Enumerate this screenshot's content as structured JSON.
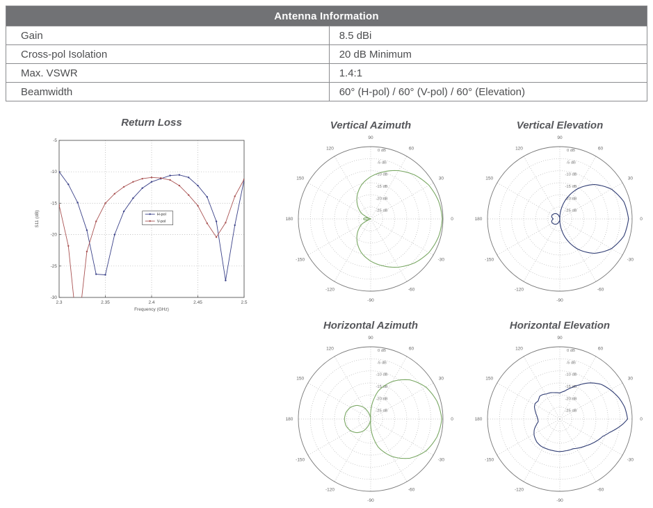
{
  "table": {
    "title": "Antenna Information",
    "rows": [
      {
        "label": "Gain",
        "value": "8.5 dBi"
      },
      {
        "label": "Cross-pol Isolation",
        "value": "20 dB Minimum"
      },
      {
        "label": "Max. VSWR",
        "value": "1.4:1"
      },
      {
        "label": "Beamwidth",
        "value": "60° (H-pol) / 60° (V-pol) / 60° (Elevation)"
      }
    ]
  },
  "colors": {
    "header_bg": "#717275",
    "table_border": "#8a8b8e",
    "body_text": "#4c4d4f",
    "chart_title": "#56575b",
    "h_pol_line": "#3a4188",
    "v_pol_line": "#a95252",
    "green_pattern": "#79a763",
    "navy_pattern": "#2e3b72"
  },
  "chart_data": [
    {
      "type": "line",
      "title": "Return Loss",
      "xlabel": "Frequency (GHz)",
      "ylabel": "S11 (dB)",
      "xlim": [
        2.3,
        2.5
      ],
      "ylim": [
        -30,
        -5
      ],
      "xticks": [
        2.3,
        2.35,
        2.4,
        2.45,
        2.5
      ],
      "yticks": [
        -5,
        -10,
        -15,
        -20,
        -25,
        -30
      ],
      "grid": "dotted",
      "legend_position": "center",
      "x": [
        2.3,
        2.31,
        2.32,
        2.33,
        2.34,
        2.35,
        2.36,
        2.37,
        2.38,
        2.39,
        2.4,
        2.41,
        2.42,
        2.43,
        2.44,
        2.45,
        2.46,
        2.47,
        2.48,
        2.49,
        2.5
      ],
      "series": [
        {
          "name": "H-pol",
          "color": "#3a4188",
          "values": [
            -10.0,
            -12.0,
            -14.9,
            -19.3,
            -26.3,
            -26.4,
            -20.0,
            -16.3,
            -14.2,
            -12.6,
            -11.6,
            -11.1,
            -10.6,
            -10.5,
            -10.9,
            -12.2,
            -14.0,
            -17.9,
            -27.3,
            -18.5,
            -11.3
          ]
        },
        {
          "name": "V-pol",
          "color": "#a95252",
          "values": [
            -15.3,
            -21.8,
            -36.0,
            -22.7,
            -17.9,
            -15.0,
            -13.5,
            -12.4,
            -11.6,
            -11.1,
            -10.9,
            -11.0,
            -11.3,
            -12.2,
            -13.7,
            -15.4,
            -18.2,
            -20.4,
            -18.1,
            -13.9,
            -11.2
          ]
        }
      ]
    },
    {
      "type": "polar",
      "title": "Vertical Azimuth",
      "color": "#79a763",
      "rings_db": [
        0,
        -5,
        -10,
        -15,
        -20,
        -25
      ],
      "r_min_db": -30,
      "angle_labels": [
        90,
        60,
        30,
        0,
        -30,
        -60,
        -90,
        -120,
        -150,
        180,
        150,
        120
      ],
      "points": [
        [
          0,
          -0.3
        ],
        [
          15,
          -0.9
        ],
        [
          30,
          -2.1
        ],
        [
          45,
          -4.2
        ],
        [
          60,
          -6.9
        ],
        [
          75,
          -9.8
        ],
        [
          90,
          -12.5
        ],
        [
          105,
          -15.4
        ],
        [
          120,
          -18.8
        ],
        [
          135,
          -22.4
        ],
        [
          150,
          -26.0
        ],
        [
          158,
          -30
        ],
        [
          165,
          -28.6
        ],
        [
          172,
          -27.4
        ],
        [
          180,
          -27.0
        ],
        [
          188,
          -27.4
        ],
        [
          195,
          -28.6
        ],
        [
          202,
          -30
        ],
        [
          210,
          -26.0
        ],
        [
          225,
          -22.4
        ],
        [
          240,
          -18.8
        ],
        [
          255,
          -15.4
        ],
        [
          270,
          -12.5
        ],
        [
          285,
          -9.8
        ],
        [
          300,
          -6.9
        ],
        [
          315,
          -4.2
        ],
        [
          330,
          -2.1
        ],
        [
          345,
          -0.9
        ],
        [
          360,
          -0.3
        ]
      ]
    },
    {
      "type": "polar",
      "title": "Vertical Elevation",
      "color": "#2e3b72",
      "rings_db": [
        0,
        -5,
        -10,
        -15,
        -20,
        -25
      ],
      "r_min_db": -30,
      "angle_labels": [
        90,
        60,
        30,
        0,
        -30,
        -60,
        -90,
        -120,
        -150,
        180,
        150,
        120
      ],
      "points": [
        [
          0,
          -1.5
        ],
        [
          15,
          -2.5
        ],
        [
          30,
          -5.3
        ],
        [
          45,
          -9.8
        ],
        [
          60,
          -15.7
        ],
        [
          75,
          -22.6
        ],
        [
          85,
          -27.3
        ],
        [
          93,
          -30
        ],
        [
          100,
          -29.3
        ],
        [
          110,
          -28.3
        ],
        [
          120,
          -27.6
        ],
        [
          135,
          -26.9
        ],
        [
          150,
          -26.5
        ],
        [
          162,
          -26.4
        ],
        [
          172,
          -26.8
        ],
        [
          180,
          -27.3
        ],
        [
          188,
          -26.8
        ],
        [
          198,
          -26.4
        ],
        [
          210,
          -26.5
        ],
        [
          225,
          -26.9
        ],
        [
          240,
          -27.6
        ],
        [
          250,
          -28.3
        ],
        [
          260,
          -29.3
        ],
        [
          267,
          -30
        ],
        [
          275,
          -27.3
        ],
        [
          285,
          -22.6
        ],
        [
          300,
          -15.7
        ],
        [
          315,
          -9.8
        ],
        [
          330,
          -5.3
        ],
        [
          345,
          -2.5
        ],
        [
          360,
          -1.5
        ]
      ]
    },
    {
      "type": "polar",
      "title": "Horizontal Azimuth",
      "color": "#79a763",
      "rings_db": [
        0,
        -5,
        -10,
        -15,
        -20,
        -25
      ],
      "r_min_db": -30,
      "angle_labels": [
        90,
        60,
        30,
        0,
        -30,
        -60,
        -90,
        -120,
        -150,
        180,
        150,
        120
      ],
      "points": [
        [
          0,
          -0.5
        ],
        [
          15,
          -1.5
        ],
        [
          30,
          -3.5
        ],
        [
          45,
          -7.0
        ],
        [
          60,
          -12.0
        ],
        [
          75,
          -18.0
        ],
        [
          85,
          -24.0
        ],
        [
          94,
          -30
        ],
        [
          105,
          -28.0
        ],
        [
          120,
          -24.5
        ],
        [
          135,
          -22.0
        ],
        [
          150,
          -20.3
        ],
        [
          165,
          -19.4
        ],
        [
          180,
          -19.1
        ],
        [
          195,
          -19.4
        ],
        [
          210,
          -20.3
        ],
        [
          225,
          -22.0
        ],
        [
          240,
          -24.5
        ],
        [
          255,
          -28.0
        ],
        [
          266,
          -30
        ],
        [
          275,
          -24.0
        ],
        [
          285,
          -18.0
        ],
        [
          300,
          -12.0
        ],
        [
          315,
          -7.0
        ],
        [
          330,
          -3.5
        ],
        [
          345,
          -1.5
        ],
        [
          360,
          -0.5
        ]
      ]
    },
    {
      "type": "polar",
      "title": "Horizontal Elevation",
      "color": "#2e3b72",
      "rings_db": [
        0,
        -5,
        -10,
        -15,
        -20,
        -25
      ],
      "r_min_db": -30,
      "angle_labels": [
        90,
        60,
        30,
        0,
        -30,
        -60,
        -90,
        -120,
        -150,
        180,
        150,
        120
      ],
      "points": [
        [
          0,
          -1.9
        ],
        [
          10,
          -2.6
        ],
        [
          20,
          -4.0
        ],
        [
          30,
          -5.8
        ],
        [
          40,
          -7.6
        ],
        [
          50,
          -10.4
        ],
        [
          60,
          -13.6
        ],
        [
          70,
          -16.2
        ],
        [
          80,
          -18.2
        ],
        [
          90,
          -19.2
        ],
        [
          100,
          -18.9
        ],
        [
          110,
          -18.4
        ],
        [
          118,
          -18.2
        ],
        [
          125,
          -17.6
        ],
        [
          131,
          -17.4
        ],
        [
          140,
          -18.3
        ],
        [
          148,
          -17.9
        ],
        [
          154,
          -18.3
        ],
        [
          163,
          -19.4
        ],
        [
          172,
          -20.4
        ],
        [
          180,
          -20.9
        ],
        [
          187,
          -21.0
        ],
        [
          195,
          -19.8
        ],
        [
          202,
          -18.6
        ],
        [
          212,
          -17.4
        ],
        [
          225,
          -16.5
        ],
        [
          235,
          -16.3
        ],
        [
          246,
          -16.5
        ],
        [
          258,
          -16.6
        ],
        [
          269,
          -16.5
        ],
        [
          280,
          -16.6
        ],
        [
          294,
          -16.5
        ],
        [
          305,
          -15.5
        ],
        [
          315,
          -14.4
        ],
        [
          325,
          -12.9
        ],
        [
          338,
          -10.8
        ],
        [
          345,
          -8.6
        ],
        [
          352,
          -5.4
        ],
        [
          356,
          -3.5
        ],
        [
          360,
          -1.9
        ]
      ]
    }
  ]
}
